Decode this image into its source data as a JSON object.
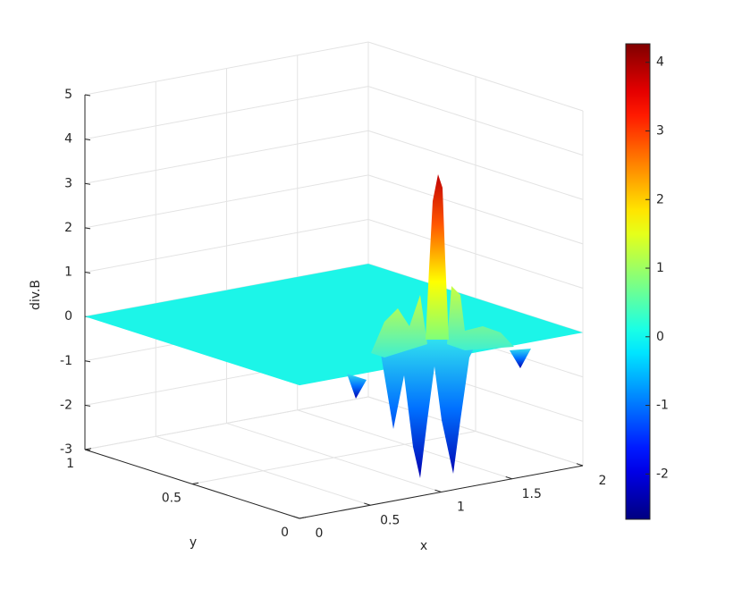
{
  "chart_data": {
    "type": "surface",
    "xlabel": "x",
    "ylabel": "y",
    "zlabel": "div.B",
    "xlim": [
      0,
      2
    ],
    "xticks": [
      0,
      0.5,
      1,
      1.5,
      2
    ],
    "ylim": [
      0,
      1
    ],
    "yticks": [
      0,
      0.5,
      1
    ],
    "zlim": [
      -3,
      5
    ],
    "zticks": [
      -3,
      -2,
      -1,
      0,
      1,
      2,
      3,
      4,
      5
    ],
    "grid": true,
    "colormap": "jet",
    "clim": [
      -2.66,
      4.27
    ],
    "cticks": [
      -2,
      -1,
      0,
      1,
      2,
      3,
      4
    ]
  }
}
